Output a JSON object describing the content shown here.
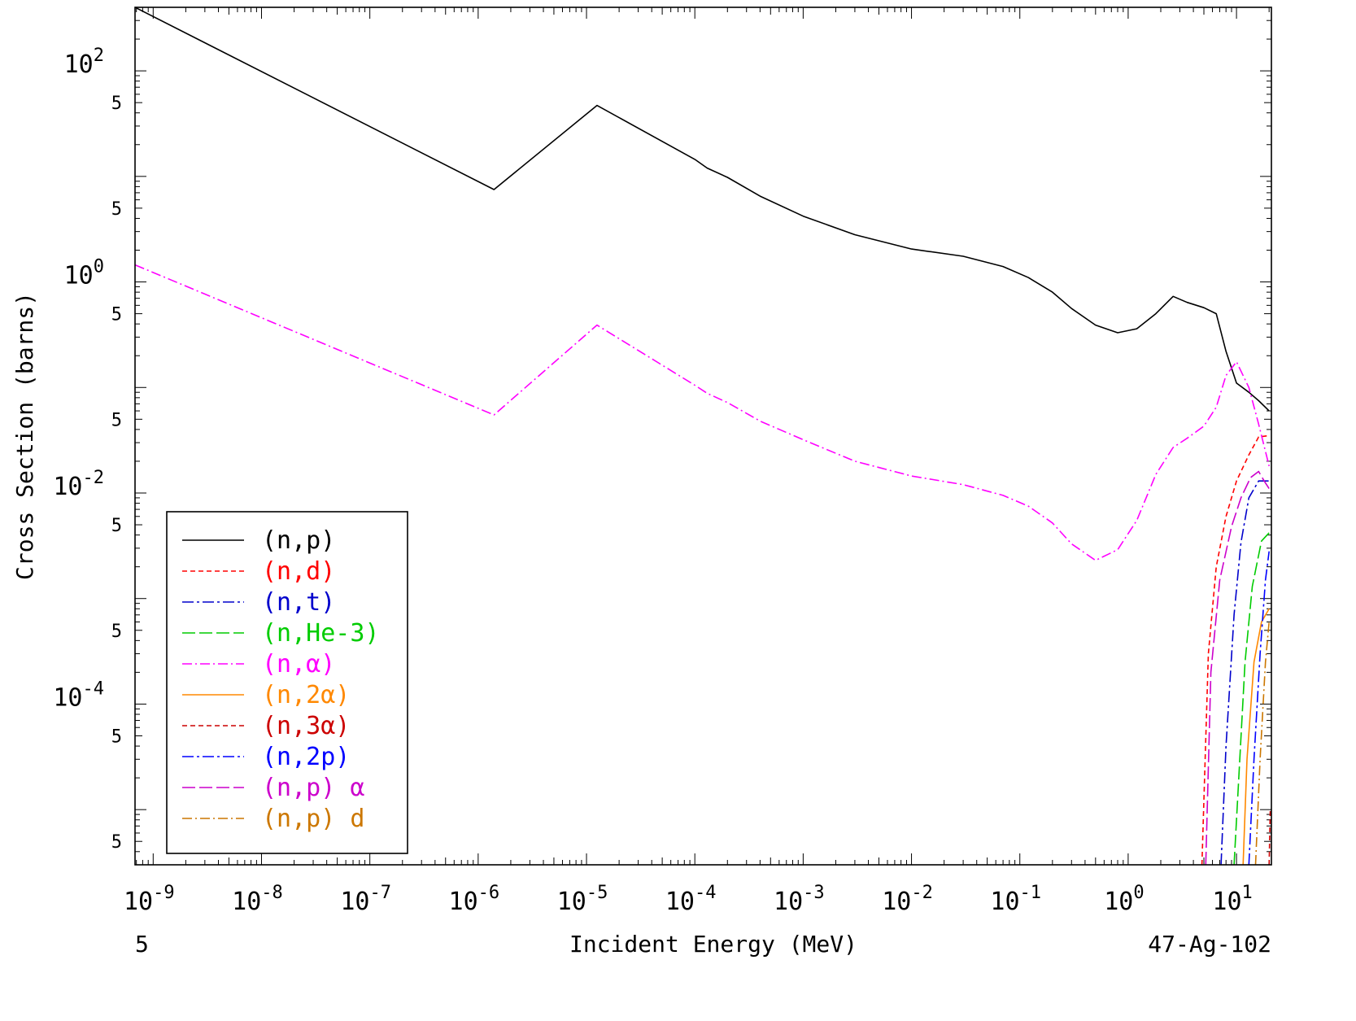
{
  "chart_data": {
    "type": "line",
    "xlabel": "Incident Energy (MeV)",
    "ylabel": "Cross Section (barns)",
    "footer_left": "5",
    "footer_right": "47-Ag-102",
    "x_scale": "log",
    "y_scale": "log",
    "xlim": [
      6.8e-10,
      21
    ],
    "ylim": [
      3e-06,
      400
    ],
    "x_ticks": [
      {
        "v": 1e-09,
        "base": "10",
        "exp": "-9"
      },
      {
        "v": 1e-08,
        "base": "10",
        "exp": "-8"
      },
      {
        "v": 1e-07,
        "base": "10",
        "exp": "-7"
      },
      {
        "v": 1e-06,
        "base": "10",
        "exp": "-6"
      },
      {
        "v": 1e-05,
        "base": "10",
        "exp": "-5"
      },
      {
        "v": 0.0001,
        "base": "10",
        "exp": "-4"
      },
      {
        "v": 0.001,
        "base": "10",
        "exp": "-3"
      },
      {
        "v": 0.01,
        "base": "10",
        "exp": "-2"
      },
      {
        "v": 0.1,
        "base": "10",
        "exp": "-1"
      },
      {
        "v": 1,
        "base": "10",
        "exp": "0"
      },
      {
        "v": 10,
        "base": "10",
        "exp": "1"
      }
    ],
    "y_ticks": [
      {
        "v": 100,
        "base": "10",
        "exp": "2"
      },
      {
        "v": 1,
        "base": "10",
        "exp": "0"
      },
      {
        "v": 0.01,
        "base": "10",
        "exp": "-2"
      },
      {
        "v": 0.0001,
        "base": "10",
        "exp": "-4"
      }
    ],
    "y_minor_labels": [
      {
        "v": 50,
        "label": "5"
      },
      {
        "v": 5,
        "label": "5"
      },
      {
        "v": 0.5,
        "label": "5"
      },
      {
        "v": 0.05,
        "label": "5"
      },
      {
        "v": 0.005,
        "label": "5"
      },
      {
        "v": 0.0005,
        "label": "5"
      },
      {
        "v": 5e-05,
        "label": "5"
      },
      {
        "v": 5e-06,
        "label": "5"
      }
    ],
    "legend_position": "lower-left",
    "series": [
      {
        "name": "(n,p)",
        "color": "#000000",
        "dash": "solid",
        "points": [
          [
            6.8e-10,
            400
          ],
          [
            1.4e-06,
            7.5
          ],
          [
            1.25e-05,
            47
          ],
          [
            0.0001,
            14.5
          ],
          [
            0.00013,
            12
          ],
          [
            0.0002,
            9.8
          ],
          [
            0.0004,
            6.5
          ],
          [
            0.001,
            4.2
          ],
          [
            0.003,
            2.8
          ],
          [
            0.01,
            2.05
          ],
          [
            0.03,
            1.75
          ],
          [
            0.07,
            1.4
          ],
          [
            0.12,
            1.1
          ],
          [
            0.2,
            0.8
          ],
          [
            0.3,
            0.56
          ],
          [
            0.5,
            0.39
          ],
          [
            0.8,
            0.33
          ],
          [
            1.2,
            0.36
          ],
          [
            1.8,
            0.5
          ],
          [
            2.6,
            0.73
          ],
          [
            3.5,
            0.64
          ],
          [
            5.0,
            0.57
          ],
          [
            6.5,
            0.5
          ],
          [
            8.0,
            0.22
          ],
          [
            10.0,
            0.11
          ],
          [
            13.0,
            0.09
          ],
          [
            16.0,
            0.075
          ],
          [
            20.0,
            0.06
          ]
        ]
      },
      {
        "name": "(n,d)",
        "color": "#ff0000",
        "dash": "6,4",
        "points": [
          [
            4.8,
            3e-06
          ],
          [
            5.5,
            0.0003
          ],
          [
            6.5,
            0.002
          ],
          [
            8.0,
            0.006
          ],
          [
            10,
            0.013
          ],
          [
            13,
            0.023
          ],
          [
            16,
            0.034
          ],
          [
            20,
            0.035
          ]
        ]
      },
      {
        "name": "(n,t)",
        "color": "#0000cc",
        "dash": "14,4,3,4",
        "points": [
          [
            7.2,
            3e-06
          ],
          [
            8.0,
            4e-05
          ],
          [
            9.5,
            0.0007
          ],
          [
            11,
            0.0034
          ],
          [
            13,
            0.009
          ],
          [
            16,
            0.013
          ],
          [
            20,
            0.013
          ]
        ]
      },
      {
        "name": "(n,He-3)",
        "color": "#00cc00",
        "dash": "16,5",
        "points": [
          [
            9.5,
            3e-06
          ],
          [
            10.5,
            2e-05
          ],
          [
            12,
            0.00025
          ],
          [
            14,
            0.0013
          ],
          [
            17,
            0.0035
          ],
          [
            20,
            0.0042
          ]
        ]
      },
      {
        "name": "(n,α)",
        "color": "#ff00ff",
        "dash": "12,4,2,4",
        "points": [
          [
            6.8e-10,
            1.45
          ],
          [
            1.4e-06,
            0.055
          ],
          [
            1.25e-05,
            0.39
          ],
          [
            0.0001,
            0.105
          ],
          [
            0.00013,
            0.088
          ],
          [
            0.0002,
            0.072
          ],
          [
            0.0004,
            0.048
          ],
          [
            0.001,
            0.032
          ],
          [
            0.003,
            0.02
          ],
          [
            0.01,
            0.0145
          ],
          [
            0.03,
            0.012
          ],
          [
            0.07,
            0.0095
          ],
          [
            0.12,
            0.0075
          ],
          [
            0.2,
            0.0052
          ],
          [
            0.3,
            0.0033
          ],
          [
            0.5,
            0.0023
          ],
          [
            0.8,
            0.0029
          ],
          [
            1.2,
            0.0055
          ],
          [
            1.8,
            0.015
          ],
          [
            2.6,
            0.027
          ],
          [
            3.5,
            0.033
          ],
          [
            5.0,
            0.043
          ],
          [
            6.5,
            0.065
          ],
          [
            8.0,
            0.13
          ],
          [
            10.0,
            0.175
          ],
          [
            13.0,
            0.1
          ],
          [
            16.0,
            0.045
          ],
          [
            20.0,
            0.018
          ]
        ]
      },
      {
        "name": "(n,2α)",
        "color": "#ff8800",
        "dash": "solid",
        "points": [
          [
            11.5,
            3e-06
          ],
          [
            12.5,
            3e-05
          ],
          [
            14.5,
            0.00025
          ],
          [
            17,
            0.0006
          ],
          [
            20,
            0.0008
          ]
        ]
      },
      {
        "name": "(n,3α)",
        "color": "#cc0000",
        "dash": "6,4",
        "points": [
          [
            20,
            3e-06
          ],
          [
            20.5,
            1e-05
          ]
        ]
      },
      {
        "name": "(n,2p)",
        "color": "#0000ff",
        "dash": "14,4,3,4",
        "points": [
          [
            13,
            3e-06
          ],
          [
            14.5,
            3e-05
          ],
          [
            16.5,
            0.0003
          ],
          [
            18.5,
            0.0015
          ],
          [
            20,
            0.0028
          ]
        ]
      },
      {
        "name": "(n,p) α",
        "color": "#cc00cc",
        "dash": "16,5",
        "points": [
          [
            5.2,
            3e-06
          ],
          [
            5.8,
            0.0002
          ],
          [
            7,
            0.0015
          ],
          [
            9,
            0.0048
          ],
          [
            11,
            0.009
          ],
          [
            13.5,
            0.014
          ],
          [
            16,
            0.016
          ],
          [
            18,
            0.013
          ],
          [
            20,
            0.011
          ]
        ]
      },
      {
        "name": "(n,p) d",
        "color": "#cc7700",
        "dash": "12,4,2,4",
        "points": [
          [
            15,
            3e-06
          ],
          [
            16.5,
            3e-05
          ],
          [
            18.5,
            0.00025
          ],
          [
            20,
            0.0006
          ]
        ]
      }
    ]
  }
}
